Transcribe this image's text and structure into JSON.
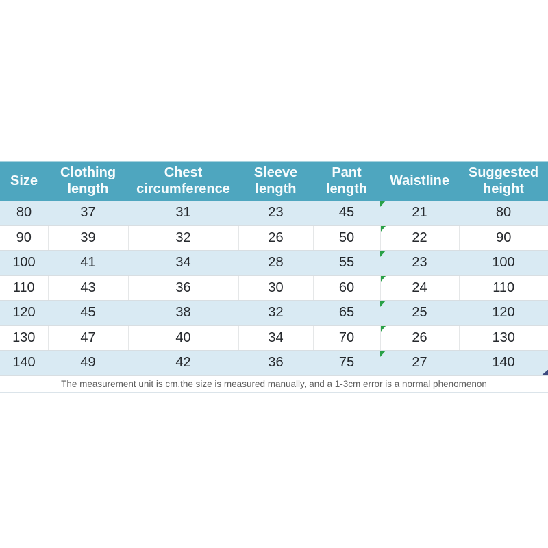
{
  "chart_data": {
    "type": "table",
    "title": "",
    "columns": [
      "Size",
      "Clothing length",
      "Chest circumference",
      "Sleeve length",
      "Pant length",
      "Waistline",
      "Suggested height"
    ],
    "rows": [
      [
        "80",
        "37",
        "31",
        "23",
        "45",
        "21",
        "80"
      ],
      [
        "90",
        "39",
        "32",
        "26",
        "50",
        "22",
        "90"
      ],
      [
        "100",
        "41",
        "34",
        "28",
        "55",
        "23",
        "100"
      ],
      [
        "110",
        "43",
        "36",
        "30",
        "60",
        "24",
        "110"
      ],
      [
        "120",
        "45",
        "38",
        "32",
        "65",
        "25",
        "120"
      ],
      [
        "130",
        "47",
        "40",
        "34",
        "70",
        "26",
        "130"
      ],
      [
        "140",
        "49",
        "42",
        "36",
        "75",
        "27",
        "140"
      ]
    ],
    "footnote": "The measurement unit is cm,the size is measured manually, and a 1-3cm error is a normal phenomenon",
    "markers": {
      "green_corner_triangle_column": "Waistline",
      "green_corner_triangle_rows": [
        "80",
        "90",
        "100",
        "110",
        "120",
        "130",
        "140"
      ],
      "navy_corner_triangle_cell": "140 / Suggested height"
    }
  },
  "colors": {
    "header_bg": "#4ea6bf",
    "header_top_edge": "#a6d2de",
    "header_text": "#f7fcfd",
    "row_alt_bg": "#d9eaf3",
    "row_bg": "#ffffff",
    "cell_text": "#26292d",
    "green_marker": "#2aa147",
    "navy_marker": "#3d4b80",
    "note_text": "#5f5f5f"
  }
}
